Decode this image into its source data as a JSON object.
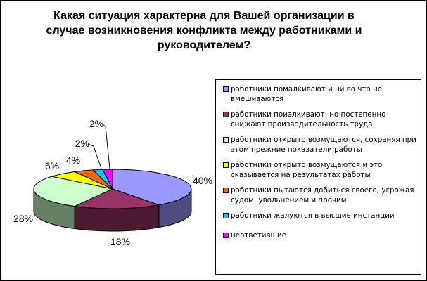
{
  "chart_data": {
    "type": "pie",
    "title": "Какая ситуация характерна для Вашей организации в\nслучае возникновения конфликта между работниками и\nруководителем?",
    "slices": [
      {
        "label": "работники помалкивают и ни во что не вмешиваются",
        "value": 40,
        "value_label": "40%",
        "color": "#9999ff",
        "side": "#4d4d80"
      },
      {
        "label": "работники поиалкивают, но постепенно снижают производительность труда",
        "value": 18,
        "value_label": "18%",
        "color": "#993366",
        "side": "#4d1a33"
      },
      {
        "label": "работники открыто возмущаются, сохраняя при этом прежние показатели работы",
        "value": 28,
        "value_label": "28%",
        "color": "#ccffcc",
        "side": "#668066"
      },
      {
        "label": "работники открыто возмущаются и это сказывается на результатах работы",
        "value": 6,
        "value_label": "6%",
        "color": "#ffff00",
        "side": "#808000"
      },
      {
        "label": "работники пытаются добиться своего, угрожая судом, увольнением и прочим",
        "value": 4,
        "value_label": "4%",
        "color": "#ff6600",
        "side": "#803300"
      },
      {
        "label": "работники жалуются в высшие инстанции",
        "value": 2,
        "value_label": "2%",
        "color": "#00ccff",
        "side": "#006680"
      },
      {
        "label": "неответившие",
        "value": 2,
        "value_label": "2%",
        "color": "#ff00ff",
        "side": "#800080"
      }
    ],
    "legend_position": "right"
  }
}
